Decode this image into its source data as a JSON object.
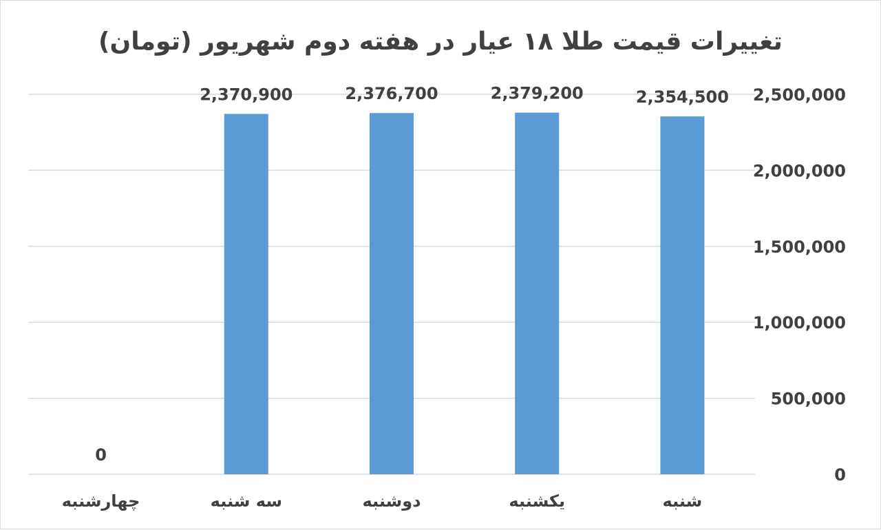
{
  "chart_data": {
    "type": "bar",
    "title": "تغییرات قیمت طلا ۱۸ عیار در هفته دوم شهریور (تومان)",
    "xlabel": "",
    "ylabel": "",
    "categories": [
      "شنبه",
      "یکشنبه",
      "دوشنبه",
      "سه شنبه",
      "چهارشنبه"
    ],
    "values": [
      2354500,
      2379200,
      2376700,
      2370900,
      0
    ],
    "data_labels": [
      "2,354,500",
      "2,379,200",
      "2,376,700",
      "2,370,900",
      "0"
    ],
    "ylim": [
      0,
      2500000
    ],
    "yticks": [
      0,
      500000,
      1000000,
      1500000,
      2000000,
      2500000
    ],
    "ytick_labels": [
      "0",
      "500,000",
      "1,000,000",
      "1,500,000",
      "2,000,000",
      "2,500,000"
    ],
    "y_axis_side": "right",
    "category_order": "right-to-left",
    "grid": true,
    "legend": "none",
    "bar_color": "#5b9bd5",
    "grid_color": "#d9d9d9",
    "text_color": "#404040"
  }
}
